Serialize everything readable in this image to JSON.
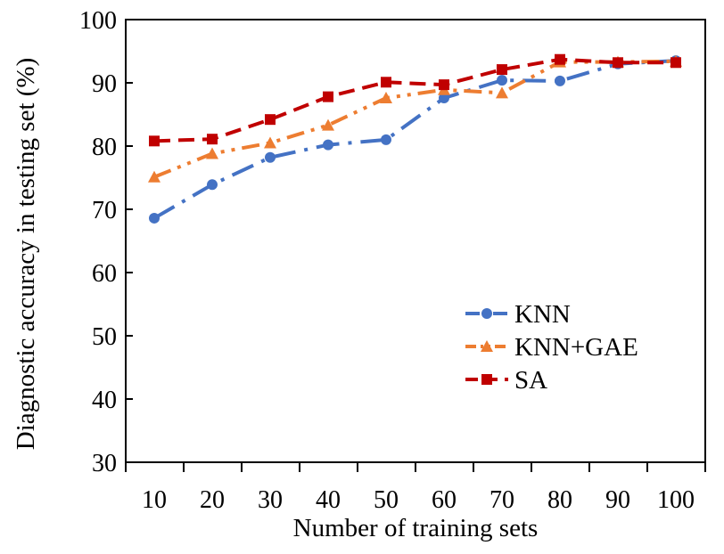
{
  "chart_data": {
    "type": "line",
    "xlabel": "Number of training sets",
    "ylabel": "Diagnostic accuracy in testing set (%)",
    "x": [
      10,
      20,
      30,
      40,
      50,
      60,
      70,
      80,
      90,
      100
    ],
    "x_tick_labels": [
      "10",
      "20",
      "30",
      "40",
      "50",
      "60",
      "70",
      "80",
      "90",
      "100"
    ],
    "ylim": [
      30,
      100
    ],
    "y_ticks": [
      30,
      40,
      50,
      60,
      70,
      80,
      90,
      100
    ],
    "y_tick_labels": [
      "30",
      "40",
      "50",
      "60",
      "70",
      "80",
      "90",
      "100"
    ],
    "grid": false,
    "legend_position": "lower-right",
    "series": [
      {
        "name": "KNN",
        "color": "#4472C4",
        "line_style": "dash-dot",
        "marker": "circle",
        "values": [
          68.6,
          73.9,
          78.2,
          80.2,
          81.0,
          87.6,
          90.4,
          90.3,
          93.0,
          93.5
        ]
      },
      {
        "name": "KNN+GAE",
        "color": "#ED7D31",
        "line_style": "dash-dot-dot",
        "marker": "triangle",
        "values": [
          75.1,
          78.8,
          80.5,
          83.3,
          87.6,
          88.9,
          88.4,
          93.3,
          93.3,
          93.4
        ]
      },
      {
        "name": "SA",
        "color": "#C00000",
        "line_style": "dashed",
        "marker": "square",
        "values": [
          80.8,
          81.1,
          84.2,
          87.8,
          90.1,
          89.7,
          92.1,
          93.7,
          93.2,
          93.2
        ]
      }
    ]
  }
}
